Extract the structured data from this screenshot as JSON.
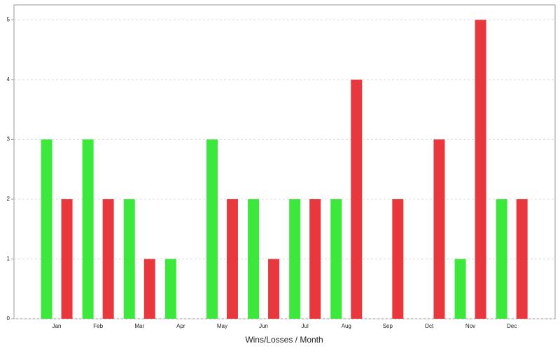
{
  "chart_data": {
    "type": "bar",
    "x_label": "Wins/Losses / Month",
    "categories": [
      "Jan",
      "Feb",
      "Mar",
      "Apr",
      "May",
      "Jun",
      "Jul",
      "Aug",
      "Sep",
      "Oct",
      "Nov",
      "Dec"
    ],
    "series": [
      {
        "color": "#3be83b",
        "values": [
          3,
          3,
          2,
          1,
          3,
          2,
          2,
          2,
          0,
          0,
          1,
          2
        ]
      },
      {
        "color": "#e8383d",
        "values": [
          2,
          2,
          1,
          0,
          2,
          1,
          2,
          4,
          2,
          3,
          5,
          2
        ]
      }
    ],
    "ylim": [
      0,
      5.25
    ],
    "yticks": [
      0,
      1,
      2,
      3,
      4,
      5
    ],
    "grid": true
  }
}
